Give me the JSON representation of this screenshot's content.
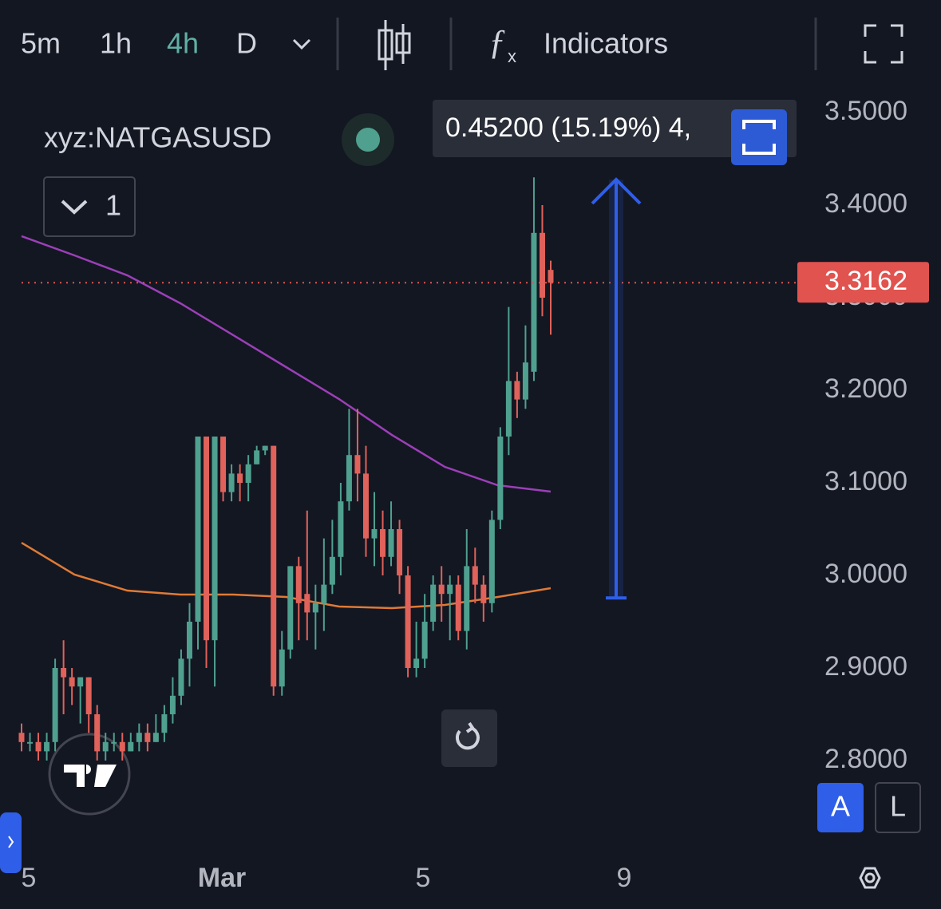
{
  "toolbar": {
    "intervals": [
      "5m",
      "1h",
      "4h",
      "D"
    ],
    "indicators": "Indicators"
  },
  "symbol": "xyz:NATGASUSD",
  "pane_count": "1",
  "scale_buttons": [
    "A",
    "L"
  ],
  "chart_data": {
    "type": "candlestick",
    "open": [
      2.83,
      2.82,
      2.82,
      2.81,
      2.82,
      2.9,
      2.89,
      2.88,
      2.89,
      2.85,
      2.81,
      2.82,
      2.82,
      2.81,
      2.82,
      2.83,
      2.82,
      2.83,
      2.85,
      2.87,
      2.91,
      2.95,
      3.15,
      2.93,
      3.15,
      3.09,
      3.11,
      3.1,
      3.12,
      3.135,
      3.14,
      2.88,
      2.92,
      3.01,
      2.98,
      2.96,
      2.97,
      2.99,
      3.02,
      3.08,
      3.13,
      3.11,
      3.04,
      3.05,
      3.02,
      3.05,
      3.0,
      2.9,
      2.91,
      2.95,
      2.99,
      2.98,
      2.99,
      2.94,
      3.01,
      2.99,
      2.97,
      3.06,
      3.15,
      3.21,
      3.19,
      3.22,
      3.37,
      3.33
    ],
    "high": [
      2.84,
      2.83,
      2.83,
      2.83,
      2.91,
      2.93,
      2.9,
      2.89,
      2.89,
      2.86,
      2.83,
      2.83,
      2.83,
      2.83,
      2.84,
      2.84,
      2.85,
      2.86,
      2.89,
      2.92,
      2.97,
      3.15,
      3.15,
      3.15,
      3.15,
      3.12,
      3.12,
      3.13,
      3.14,
      3.14,
      3.14,
      2.94,
      3.01,
      3.02,
      3.07,
      2.99,
      3.04,
      3.06,
      3.1,
      3.18,
      3.18,
      3.14,
      3.09,
      3.07,
      3.08,
      3.06,
      3.01,
      2.95,
      2.98,
      3.0,
      3.01,
      3.0,
      3.0,
      3.05,
      3.03,
      3.0,
      3.07,
      3.16,
      3.29,
      3.22,
      3.27,
      3.43,
      3.4,
      3.34
    ],
    "low": [
      2.81,
      2.81,
      2.8,
      2.8,
      2.81,
      2.85,
      2.86,
      2.84,
      2.83,
      2.8,
      2.8,
      2.81,
      2.8,
      2.81,
      2.81,
      2.81,
      2.82,
      2.82,
      2.84,
      2.86,
      2.88,
      2.92,
      2.9,
      2.88,
      3.08,
      3.08,
      3.08,
      3.08,
      3.12,
      3.13,
      2.87,
      2.87,
      2.91,
      2.93,
      2.93,
      2.92,
      2.94,
      2.98,
      3.0,
      3.07,
      3.08,
      3.02,
      3.01,
      3.0,
      3.01,
      2.98,
      2.89,
      2.89,
      2.9,
      2.94,
      2.95,
      2.93,
      2.93,
      2.92,
      2.97,
      2.95,
      2.96,
      3.05,
      3.13,
      3.17,
      3.18,
      3.21,
      3.28,
      3.26
    ],
    "close": [
      2.82,
      2.82,
      2.81,
      2.82,
      2.9,
      2.89,
      2.88,
      2.89,
      2.85,
      2.81,
      2.82,
      2.82,
      2.81,
      2.82,
      2.83,
      2.82,
      2.83,
      2.85,
      2.87,
      2.91,
      2.95,
      3.15,
      2.93,
      3.15,
      3.09,
      3.11,
      3.1,
      3.12,
      3.135,
      3.14,
      2.88,
      2.92,
      3.01,
      2.97,
      2.96,
      2.97,
      2.99,
      3.02,
      3.08,
      3.13,
      3.11,
      3.04,
      3.05,
      3.02,
      3.05,
      3.0,
      2.9,
      2.91,
      2.95,
      2.99,
      2.98,
      2.99,
      2.94,
      3.01,
      2.99,
      2.97,
      3.06,
      3.15,
      3.21,
      3.19,
      3.23,
      3.37,
      3.3,
      3.3162
    ],
    "up_color": "#4fa08f",
    "down_color": "#e0625a",
    "moving_averages": [
      {
        "color": "#9c3fb8",
        "values": [
          3.3664,
          3.3457,
          3.3241,
          3.294,
          3.2595,
          3.225,
          3.1905,
          3.1517,
          3.1172,
          3.0974,
          3.0905
        ]
      },
      {
        "color": "#e07a35",
        "values": [
          3.0353,
          3.0009,
          2.9836,
          2.9793,
          2.9793,
          2.9767,
          2.9664,
          2.9647,
          2.9681,
          2.9767,
          2.9862
        ]
      }
    ],
    "last_price": 3.3162,
    "last_price_color": "#e0534f",
    "measure": {
      "from": 2.9756,
      "to": 3.4276,
      "label": "0.45200 (15.19%) 4,",
      "color": "#2f5ee8"
    },
    "ylim": [
      2.8,
      3.5
    ],
    "yticks": [
      {
        "value": 2.8,
        "label": "2.8000"
      },
      {
        "value": 2.9,
        "label": "2.9000"
      },
      {
        "value": 3.0,
        "label": "3.0000"
      },
      {
        "value": 3.1,
        "label": "3.1000"
      },
      {
        "value": 3.2,
        "label": "3.2000"
      },
      {
        "value": 3.3,
        "label": "3.3000"
      },
      {
        "value": 3.4,
        "label": "3.4000"
      },
      {
        "value": 3.5,
        "label": "3.5000"
      }
    ],
    "xtick_labels": [
      "5",
      "Mar",
      "5",
      "9"
    ]
  }
}
